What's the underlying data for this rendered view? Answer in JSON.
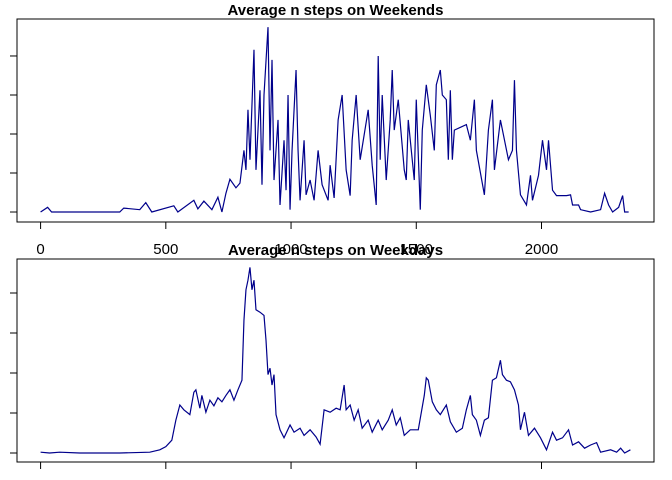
{
  "chart_data": [
    {
      "type": "line",
      "title": "Average n steps on Weekends",
      "color": "#00008b",
      "xlim": [
        -94.2,
        2449.2
      ],
      "ylim": [
        -12.8,
        247.4
      ],
      "xticks": [
        0,
        500,
        1000,
        1500,
        2000
      ],
      "yticks": [
        0,
        50,
        100,
        150,
        200
      ],
      "xtick_labels": true,
      "x": [
        0,
        28,
        44,
        316,
        332,
        396,
        420,
        444,
        532,
        548,
        612,
        628,
        652,
        684,
        708,
        724,
        740,
        756,
        780,
        796,
        812,
        820,
        828,
        836,
        852,
        860,
        876,
        884,
        892,
        908,
        916,
        924,
        932,
        948,
        956,
        972,
        980,
        988,
        996,
        1004,
        1020,
        1028,
        1036,
        1052,
        1060,
        1076,
        1092,
        1108,
        1124,
        1148,
        1156,
        1172,
        1188,
        1204,
        1220,
        1236,
        1244,
        1260,
        1276,
        1308,
        1324,
        1340,
        1348,
        1356,
        1364,
        1380,
        1396,
        1404,
        1412,
        1428,
        1452,
        1460,
        1468,
        1492,
        1500,
        1516,
        1524,
        1540,
        1556,
        1572,
        1580,
        1596,
        1604,
        1620,
        1628,
        1636,
        1644,
        1652,
        1700,
        1716,
        1732,
        1740,
        1772,
        1788,
        1804,
        1812,
        1836,
        1868,
        1884,
        1892,
        1900,
        1916,
        1940,
        1956,
        1964,
        1988,
        2004,
        2020,
        2028,
        2044,
        2060,
        2100,
        2116,
        2124,
        2148,
        2156,
        2196,
        2236,
        2252,
        2268,
        2284,
        2308,
        2324,
        2332,
        2348
      ],
      "values": [
        0,
        6,
        0,
        0,
        5,
        3,
        12,
        0,
        8,
        0,
        15,
        4,
        14,
        3,
        19,
        0,
        24,
        42,
        31,
        37,
        79,
        54,
        131,
        67,
        208,
        54,
        156,
        35,
        150,
        237,
        79,
        195,
        41,
        118,
        9,
        92,
        28,
        150,
        3,
        79,
        182,
        79,
        15,
        92,
        22,
        41,
        15,
        79,
        35,
        15,
        60,
        18,
        118,
        150,
        54,
        21,
        92,
        150,
        67,
        131,
        60,
        9,
        200,
        67,
        150,
        41,
        118,
        182,
        105,
        144,
        54,
        41,
        118,
        41,
        144,
        3,
        105,
        163,
        124,
        79,
        163,
        182,
        150,
        144,
        67,
        156,
        67,
        105,
        112,
        92,
        144,
        79,
        22,
        105,
        144,
        54,
        118,
        67,
        79,
        169,
        79,
        22,
        9,
        47,
        15,
        47,
        92,
        54,
        92,
        28,
        21,
        21,
        22,
        9,
        9,
        3,
        0,
        3,
        24,
        9,
        0,
        6,
        21,
        0,
        0
      ]
    },
    {
      "type": "line",
      "title": "Average n steps on Weekdays",
      "color": "#00008b",
      "xlim": [
        -94.2,
        2449.2
      ],
      "ylim": [
        -11.25,
        242.5
      ],
      "xticks": [
        0,
        500,
        1000,
        1500,
        2000
      ],
      "yticks": [
        0,
        50,
        100,
        150,
        200
      ],
      "xtick_labels": false,
      "x": [
        0,
        36,
        76,
        156,
        316,
        436,
        476,
        500,
        524,
        540,
        556,
        572,
        596,
        612,
        620,
        636,
        644,
        660,
        676,
        692,
        708,
        724,
        740,
        756,
        772,
        788,
        804,
        812,
        820,
        828,
        836,
        844,
        852,
        860,
        876,
        892,
        900,
        908,
        916,
        924,
        932,
        940,
        956,
        972,
        996,
        1012,
        1036,
        1052,
        1076,
        1100,
        1116,
        1132,
        1156,
        1180,
        1196,
        1212,
        1220,
        1236,
        1252,
        1268,
        1284,
        1308,
        1324,
        1348,
        1364,
        1388,
        1404,
        1420,
        1436,
        1452,
        1476,
        1508,
        1532,
        1540,
        1548,
        1564,
        1580,
        1596,
        1620,
        1636,
        1660,
        1684,
        1700,
        1716,
        1724,
        1740,
        1756,
        1772,
        1788,
        1804,
        1820,
        1836,
        1844,
        1860,
        1876,
        1892,
        1908,
        1916,
        1932,
        1948,
        1972,
        1996,
        2020,
        2044,
        2060,
        2084,
        2108,
        2124,
        2148,
        2172,
        2196,
        2220,
        2236,
        2276,
        2300,
        2316,
        2332,
        2355
      ],
      "values": [
        1,
        0,
        1,
        0,
        0,
        1,
        4,
        8,
        16,
        41,
        60,
        54,
        48,
        76,
        79,
        56,
        72,
        51,
        66,
        59,
        69,
        64,
        72,
        79,
        66,
        79,
        91,
        166,
        204,
        216,
        232,
        204,
        216,
        179,
        176,
        172,
        141,
        98,
        106,
        85,
        98,
        48,
        29,
        19,
        35,
        26,
        31,
        22,
        29,
        20,
        11,
        54,
        51,
        56,
        54,
        85,
        54,
        60,
        41,
        54,
        31,
        41,
        26,
        41,
        29,
        41,
        54,
        35,
        44,
        22,
        29,
        29,
        72,
        94,
        91,
        64,
        54,
        48,
        60,
        39,
        26,
        31,
        54,
        72,
        48,
        41,
        22,
        41,
        44,
        91,
        94,
        116,
        98,
        91,
        89,
        79,
        60,
        29,
        51,
        22,
        31,
        19,
        4,
        26,
        16,
        19,
        29,
        10,
        14,
        6,
        10,
        13,
        1,
        4,
        1,
        6,
        0,
        4
      ]
    }
  ]
}
